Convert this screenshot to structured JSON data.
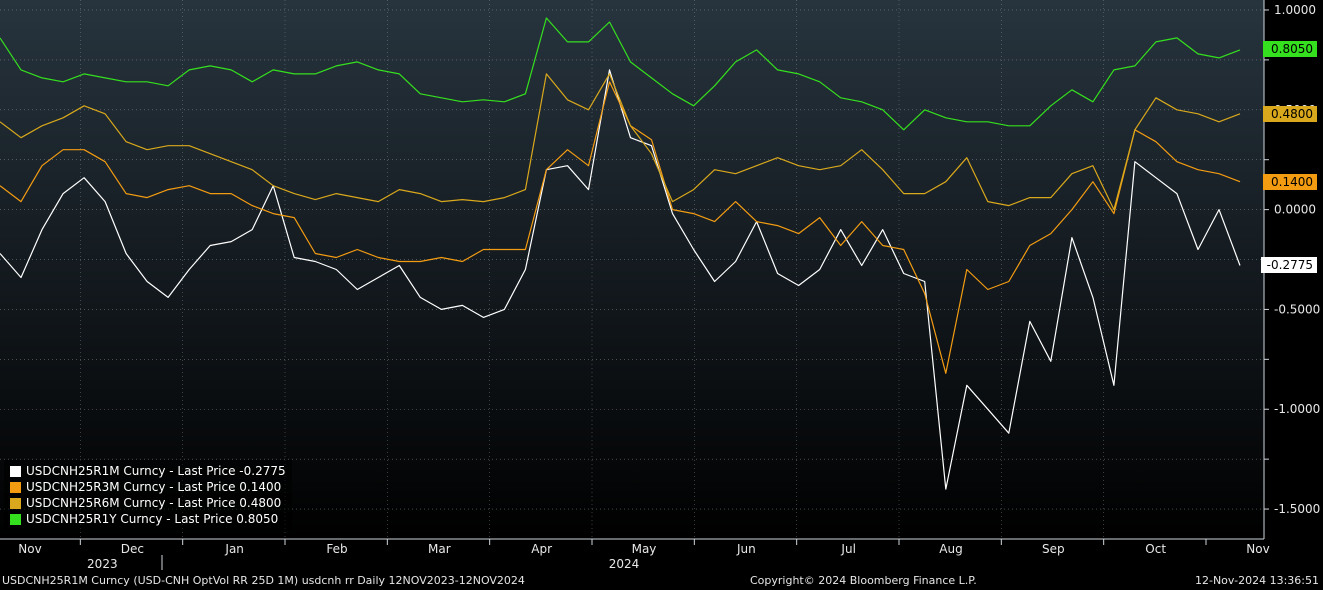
{
  "chart_data": {
    "type": "line",
    "ylim": [
      -1.65,
      1.05
    ],
    "yticks": [
      "1.0000",
      "0.5000",
      "0.0000",
      "-0.5000",
      "-1.0000",
      "-1.5000"
    ],
    "yticks_values": [
      1.0,
      0.5,
      0.0,
      -0.5,
      -1.0,
      -1.5
    ],
    "xlabels_months": [
      "Nov",
      "Dec",
      "Jan",
      "Feb",
      "Mar",
      "Apr",
      "May",
      "Jun",
      "Jul",
      "Aug",
      "Sep",
      "Oct",
      "Nov"
    ],
    "xlabels_years": [
      "2023",
      "2024"
    ],
    "grid": true,
    "legend_position": "bottom-left",
    "series": [
      {
        "name": "USDCNH25R1M Curncy - Last Price -0.2775",
        "color": "#ffffff",
        "last": "-0.2775",
        "values": [
          -0.22,
          -0.34,
          -0.1,
          0.08,
          0.16,
          0.04,
          -0.22,
          -0.36,
          -0.44,
          -0.3,
          -0.18,
          -0.16,
          -0.1,
          0.12,
          -0.24,
          -0.26,
          -0.3,
          -0.4,
          -0.34,
          -0.28,
          -0.44,
          -0.5,
          -0.48,
          -0.54,
          -0.5,
          -0.3,
          0.2,
          0.22,
          0.1,
          0.7,
          0.36,
          0.32,
          -0.02,
          -0.2,
          -0.36,
          -0.26,
          -0.06,
          -0.32,
          -0.38,
          -0.3,
          -0.1,
          -0.28,
          -0.1,
          -0.32,
          -0.36,
          -1.4,
          -0.88,
          -1.0,
          -1.12,
          -0.56,
          -0.76,
          -0.14,
          -0.44,
          -0.88,
          0.24,
          0.16,
          0.08,
          -0.2,
          0.0,
          -0.28
        ]
      },
      {
        "name": "USDCNH25R3M Curncy - Last Price 0.1400",
        "color": "#f39c12",
        "last": "0.1400",
        "values": [
          0.12,
          0.04,
          0.22,
          0.3,
          0.3,
          0.24,
          0.08,
          0.06,
          0.1,
          0.12,
          0.08,
          0.08,
          0.02,
          -0.02,
          -0.04,
          -0.22,
          -0.24,
          -0.2,
          -0.24,
          -0.26,
          -0.26,
          -0.24,
          -0.26,
          -0.2,
          -0.2,
          -0.2,
          0.2,
          0.3,
          0.22,
          0.64,
          0.42,
          0.35,
          0.0,
          -0.02,
          -0.06,
          0.04,
          -0.06,
          -0.08,
          -0.12,
          -0.04,
          -0.18,
          -0.06,
          -0.18,
          -0.2,
          -0.42,
          -0.82,
          -0.3,
          -0.4,
          -0.36,
          -0.18,
          -0.12,
          0.0,
          0.14,
          -0.02,
          0.4,
          0.34,
          0.24,
          0.2,
          0.18,
          0.14
        ]
      },
      {
        "name": "USDCNH25R6M Curncy - Last Price 0.4800",
        "color": "#d9a81c",
        "last": "0.4800",
        "values": [
          0.44,
          0.36,
          0.42,
          0.46,
          0.52,
          0.48,
          0.34,
          0.3,
          0.32,
          0.32,
          0.28,
          0.24,
          0.2,
          0.12,
          0.08,
          0.05,
          0.08,
          0.06,
          0.04,
          0.1,
          0.08,
          0.04,
          0.05,
          0.04,
          0.06,
          0.1,
          0.68,
          0.55,
          0.5,
          0.68,
          0.42,
          0.28,
          0.04,
          0.1,
          0.2,
          0.18,
          0.22,
          0.26,
          0.22,
          0.2,
          0.22,
          0.3,
          0.2,
          0.08,
          0.08,
          0.14,
          0.26,
          0.04,
          0.02,
          0.06,
          0.06,
          0.18,
          0.22,
          0.0,
          0.4,
          0.56,
          0.5,
          0.48,
          0.44,
          0.48
        ]
      },
      {
        "name": "USDCNH25R1Y Curncy - Last Price 0.8050",
        "color": "#35e01e",
        "last": "0.8050",
        "values": [
          0.86,
          0.7,
          0.66,
          0.64,
          0.68,
          0.66,
          0.64,
          0.64,
          0.62,
          0.7,
          0.72,
          0.7,
          0.64,
          0.7,
          0.68,
          0.68,
          0.72,
          0.74,
          0.7,
          0.68,
          0.58,
          0.56,
          0.54,
          0.55,
          0.54,
          0.58,
          0.96,
          0.84,
          0.84,
          0.94,
          0.74,
          0.66,
          0.58,
          0.52,
          0.62,
          0.74,
          0.8,
          0.7,
          0.68,
          0.64,
          0.56,
          0.54,
          0.5,
          0.4,
          0.5,
          0.46,
          0.44,
          0.44,
          0.42,
          0.42,
          0.52,
          0.6,
          0.54,
          0.7,
          0.72,
          0.84,
          0.86,
          0.78,
          0.76,
          0.8
        ]
      }
    ]
  },
  "footer": {
    "description": "USDCNH25R1M Curncy (USD-CNH OptVol RR 25D 1M) usdcnh rr  Daily 12NOV2023-12NOV2024",
    "copyright": "Copyright© 2024 Bloomberg Finance L.P.",
    "timestamp": "12-Nov-2024 13:36:51"
  }
}
